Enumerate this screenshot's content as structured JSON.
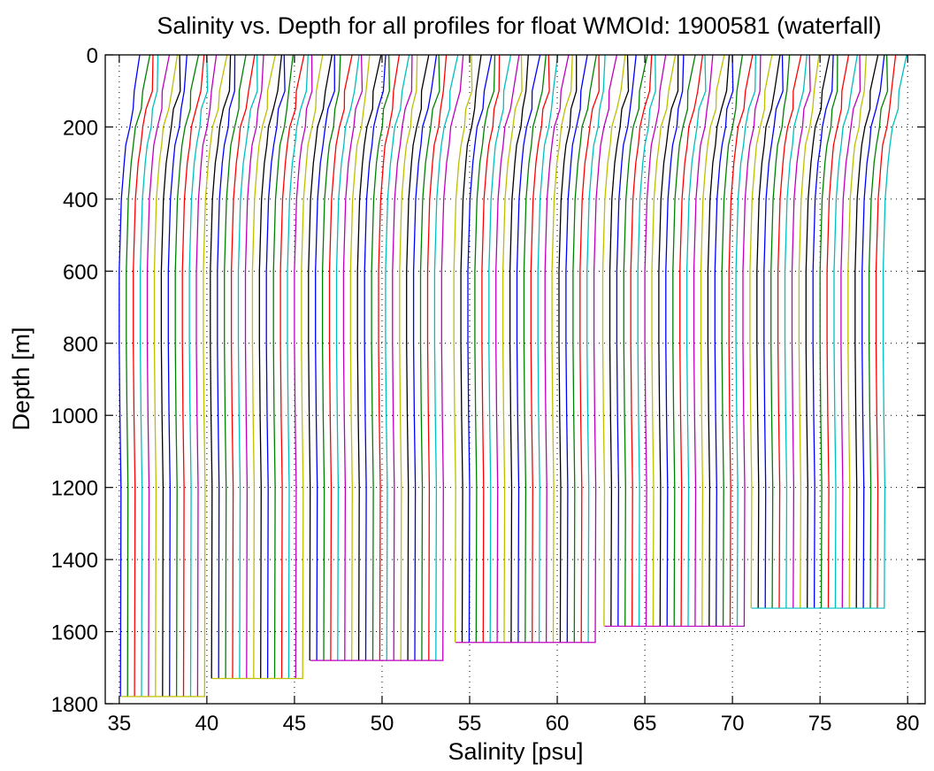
{
  "chart_data": {
    "type": "line",
    "title": "Salinity vs. Depth for all profiles for float WMOId: 1900581 (waterfall)",
    "xlabel": "Salinity [psu]",
    "ylabel": "Depth [m]",
    "xlim": [
      34.2,
      81.0
    ],
    "ylim": [
      0,
      1800
    ],
    "y_reversed": true,
    "x_ticks": [
      35,
      40,
      45,
      50,
      55,
      60,
      65,
      70,
      75,
      80
    ],
    "x_tick_labels": [
      "35",
      "40",
      "45",
      "50",
      "55",
      "60",
      "65",
      "70",
      "75",
      "80"
    ],
    "y_ticks": [
      0,
      200,
      400,
      600,
      800,
      1000,
      1200,
      1400,
      1600,
      1800
    ],
    "y_tick_labels": [
      "0",
      "200",
      "400",
      "600",
      "800",
      "1000",
      "1200",
      "1400",
      "1600",
      "1800"
    ],
    "grid": true,
    "legend": false,
    "series_colors": [
      "#0000ff",
      "#008000",
      "#ff0000",
      "#00bfbf",
      "#bf00bf",
      "#bfbf00",
      "#000000"
    ],
    "profile_shape": {
      "depth": [
        0,
        100,
        150,
        200,
        250,
        300,
        400,
        600,
        800,
        1000,
        1200
      ],
      "offset": [
        0.95,
        0.75,
        0.55,
        0.35,
        0.18,
        0.06,
        -0.1,
        -0.22,
        -0.22,
        -0.18,
        -0.12
      ]
    },
    "waterfall": {
      "step": 0.4,
      "groups": [
        {
          "first_x_at_depth": 35.1,
          "count": 13,
          "max_depth": 1780
        },
        {
          "first_x_at_depth": 40.3,
          "count": 14,
          "max_depth": 1730
        },
        {
          "first_x_at_depth": 45.9,
          "count": 20,
          "max_depth": 1680
        },
        {
          "first_x_at_depth": 54.2,
          "count": 21,
          "max_depth": 1630
        },
        {
          "first_x_at_depth": 62.7,
          "count": 21,
          "max_depth": 1585
        },
        {
          "first_x_at_depth": 71.1,
          "count": 20,
          "max_depth": 1535
        }
      ]
    }
  }
}
